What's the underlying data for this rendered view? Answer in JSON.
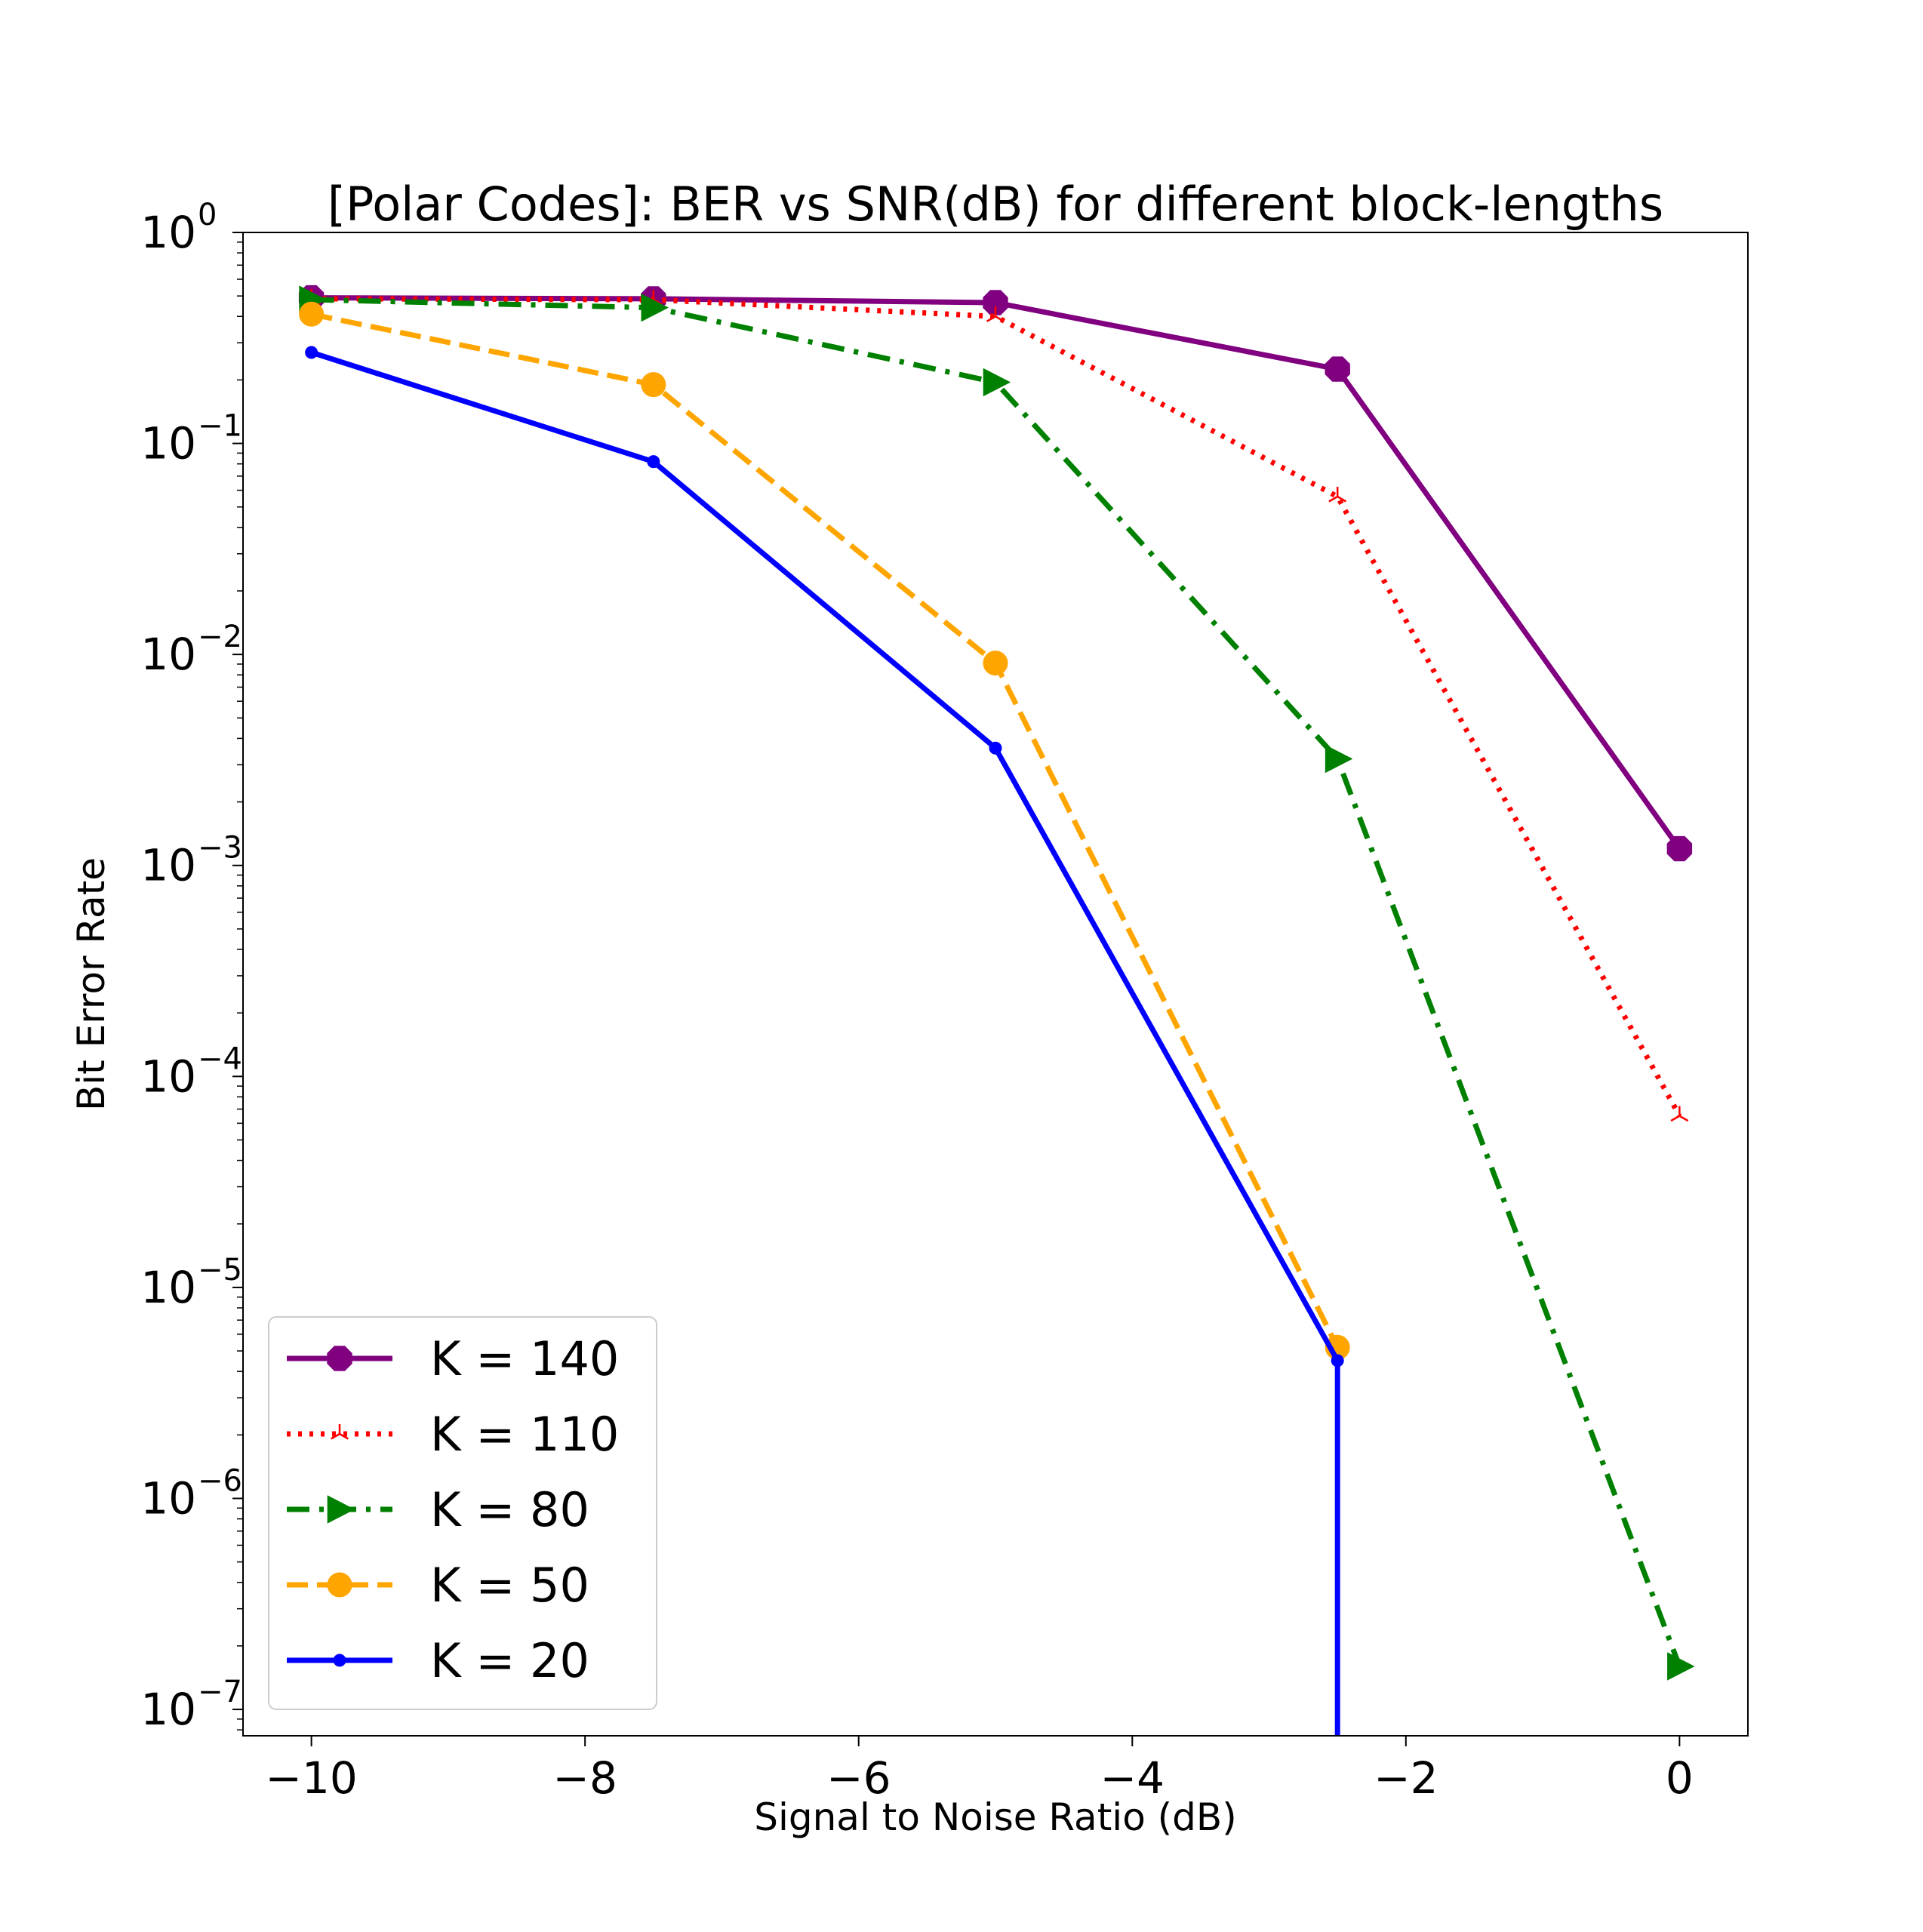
{
  "chart_data": {
    "type": "line",
    "title": "[Polar Codes]: BER vs SNR(dB) for different block-lengths",
    "xlabel": "Signal to Noise Ratio (dB)",
    "ylabel": "Bit Error Rate",
    "y_scale": "log",
    "x_ticks": [
      {
        "value": -10,
        "label": "−10"
      },
      {
        "value": -8,
        "label": "−8"
      },
      {
        "value": -6,
        "label": "−6"
      },
      {
        "value": -4,
        "label": "−4"
      },
      {
        "value": -2,
        "label": "−2"
      },
      {
        "value": 0,
        "label": "0"
      }
    ],
    "y_ticks": [
      {
        "exp": 0,
        "base": "10",
        "power": "0"
      },
      {
        "exp": -1,
        "base": "10",
        "power": "−1"
      },
      {
        "exp": -2,
        "base": "10",
        "power": "−2"
      },
      {
        "exp": -3,
        "base": "10",
        "power": "−3"
      },
      {
        "exp": -4,
        "base": "10",
        "power": "−4"
      },
      {
        "exp": -5,
        "base": "10",
        "power": "−5"
      },
      {
        "exp": -6,
        "base": "10",
        "power": "−6"
      },
      {
        "exp": -7,
        "base": "10",
        "power": "−7"
      }
    ],
    "xlim": [
      -10.5,
      0.5
    ],
    "ylim": [
      7.5e-08,
      1.0
    ],
    "grid": false,
    "legend_position": "bottom-left",
    "series": [
      {
        "name": "K = 140",
        "color": "#800080",
        "line_style": "solid",
        "marker": "octagon",
        "x": [
          -10,
          -7.5,
          -5,
          -2.5,
          0
        ],
        "y": [
          0.49,
          0.485,
          0.465,
          0.225,
          0.0012
        ]
      },
      {
        "name": "K = 110",
        "color": "#ff0000",
        "line_style": "dotted",
        "marker": "tri-up",
        "x": [
          -10,
          -7.5,
          -5,
          -2.5,
          0
        ],
        "y": [
          0.485,
          0.48,
          0.4,
          0.056,
          6.5e-05
        ]
      },
      {
        "name": "K = 80",
        "color": "#008000",
        "line_style": "dashdot",
        "marker": "triangle-right",
        "x": [
          -10,
          -7.5,
          -5,
          -2.5,
          0
        ],
        "y": [
          0.48,
          0.44,
          0.195,
          0.0032,
          1.6e-07
        ]
      },
      {
        "name": "K = 50",
        "color": "#ffa500",
        "line_style": "dashed",
        "marker": "circle",
        "x": [
          -10,
          -7.5,
          -5,
          -2.5
        ],
        "y": [
          0.41,
          0.19,
          0.0091,
          5.2e-06
        ]
      },
      {
        "name": "K = 20",
        "color": "#0000ff",
        "line_style": "solid",
        "marker": "small-circle",
        "x": [
          -10,
          -7.5,
          -5,
          -2.5,
          -2.5
        ],
        "y": [
          0.27,
          0.082,
          0.0036,
          4.5e-06,
          1e-12
        ]
      }
    ]
  }
}
